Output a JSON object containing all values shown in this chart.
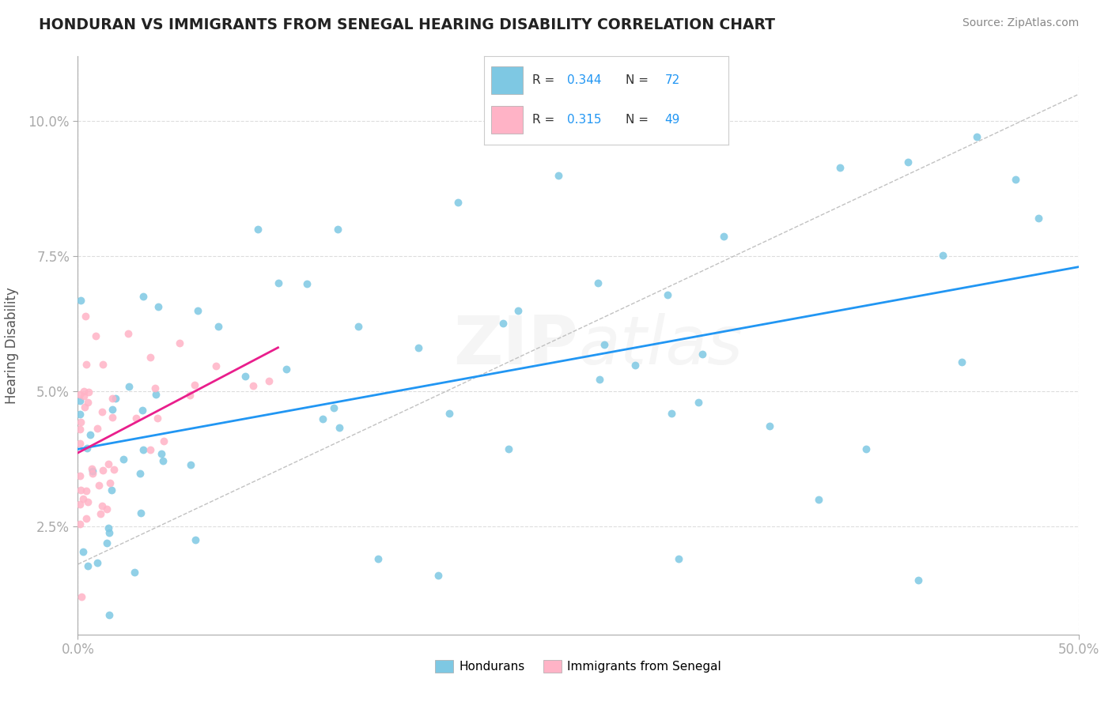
{
  "title": "HONDURAN VS IMMIGRANTS FROM SENEGAL HEARING DISABILITY CORRELATION CHART",
  "source": "Source: ZipAtlas.com",
  "ylabel": "Hearing Disability",
  "xlim": [
    0.0,
    0.5
  ],
  "ylim": [
    0.005,
    0.112
  ],
  "ytick_vals": [
    0.025,
    0.05,
    0.075,
    0.1
  ],
  "ytick_labels": [
    "2.5%",
    "5.0%",
    "7.5%",
    "10.0%"
  ],
  "xtick_vals": [
    0.0,
    0.5
  ],
  "xtick_labels": [
    "0.0%",
    "50.0%"
  ],
  "blue_scatter": "#7ec8e3",
  "pink_scatter": "#ffb3c6",
  "blue_line": "#2196F3",
  "pink_line": "#e91e8c",
  "diag_line_color": "#bbbbbb",
  "grid_color": "#dddddd",
  "background": "#ffffff",
  "title_color": "#222222",
  "source_color": "#888888",
  "axis_color": "#aaaaaa",
  "tick_color": "#4285f4",
  "R_hondurans": "0.344",
  "N_hondurans": "72",
  "R_senegal": "0.315",
  "N_senegal": "49",
  "watermark_zip": "ZIP",
  "watermark_atlas": "atlas"
}
